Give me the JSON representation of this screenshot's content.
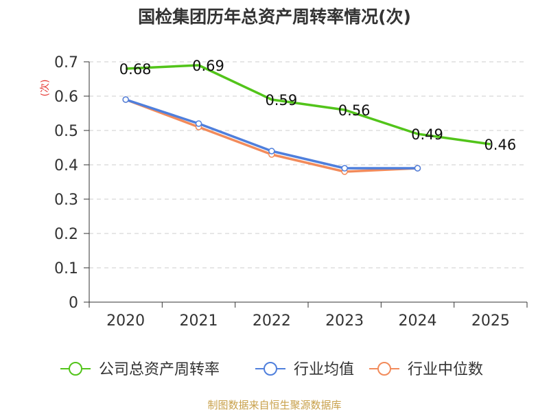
{
  "chart_data": {
    "type": "line",
    "title": "国检集团历年总资产周转率情况(次)",
    "ylabel": "(次)",
    "xlabel": "",
    "categories": [
      "2020",
      "2021",
      "2022",
      "2023",
      "2024",
      "2025"
    ],
    "ylim": [
      0,
      0.7
    ],
    "yticks": [
      "0",
      "0.1",
      "0.2",
      "0.3",
      "0.4",
      "0.5",
      "0.6",
      "0.7"
    ],
    "grid": true,
    "legend_position": "bottom",
    "series": [
      {
        "name": "公司总资产周转率",
        "color": "#52c41a",
        "values": [
          0.68,
          0.69,
          0.59,
          0.56,
          0.49,
          0.46
        ],
        "labels": [
          "0.68",
          "0.69",
          "0.59",
          "0.56",
          "0.49",
          "0.46"
        ]
      },
      {
        "name": "行业均值",
        "color": "#4f7fdc",
        "values": [
          0.59,
          0.52,
          0.44,
          0.39,
          0.39,
          null
        ]
      },
      {
        "name": "行业中位数",
        "color": "#f28b5b",
        "values": [
          0.59,
          0.51,
          0.43,
          0.38,
          0.39,
          null
        ]
      }
    ],
    "source": "制图数据来自恒生聚源数据库",
    "source_color": "#c8a04a"
  }
}
